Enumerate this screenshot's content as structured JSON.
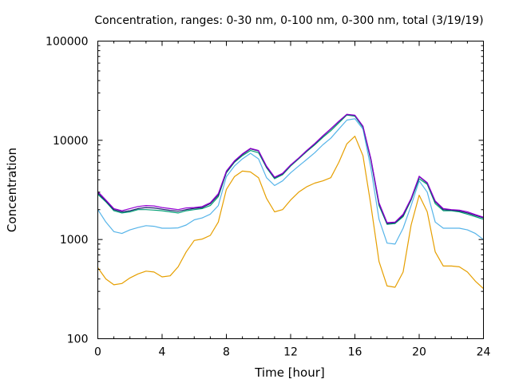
{
  "chart_data": {
    "type": "line",
    "title": "Concentration, ranges: 0-30 nm, 0-100 nm, 0-300 nm, total (3/19/19)",
    "xlabel": "Time [hour]",
    "ylabel": "Concentration",
    "xlim": [
      0,
      24
    ],
    "ylim": [
      100,
      100000
    ],
    "yscale": "log",
    "grid": false,
    "legend": "none",
    "x_ticks": [
      "0",
      "4",
      "8",
      "12",
      "16",
      "20",
      "24"
    ],
    "y_ticks": [
      "100",
      "1000",
      "10000",
      "100000"
    ],
    "x": [
      0,
      0.5,
      1,
      1.5,
      2,
      2.5,
      3,
      3.5,
      4,
      4.5,
      5,
      5.5,
      6,
      6.5,
      7,
      7.5,
      8,
      8.5,
      9,
      9.5,
      10,
      10.5,
      11,
      11.5,
      12,
      12.5,
      13,
      13.5,
      14,
      14.5,
      15,
      15.5,
      16,
      16.5,
      17,
      17.5,
      18,
      18.5,
      19,
      19.5,
      20,
      20.5,
      21,
      21.5,
      22,
      22.5,
      23,
      23.5,
      24
    ],
    "series": [
      {
        "color": "#e69f00",
        "values": [
          520,
          400,
          350,
          360,
          410,
          450,
          480,
          470,
          420,
          430,
          530,
          750,
          980,
          1010,
          1100,
          1500,
          3200,
          4300,
          4900,
          4800,
          4200,
          2600,
          1900,
          2000,
          2500,
          3000,
          3400,
          3700,
          3900,
          4200,
          6000,
          9200,
          11000,
          7000,
          2200,
          600,
          340,
          330,
          470,
          1400,
          2800,
          1900,
          750,
          540,
          540,
          530,
          470,
          380,
          320
        ]
      },
      {
        "color": "#56b4e9",
        "values": [
          2000,
          1500,
          1200,
          1150,
          1250,
          1320,
          1380,
          1360,
          1300,
          1300,
          1310,
          1400,
          1580,
          1650,
          1800,
          2200,
          4300,
          5500,
          6500,
          7400,
          6500,
          4200,
          3500,
          3900,
          4700,
          5500,
          6400,
          7500,
          9000,
          10500,
          13000,
          16000,
          16500,
          13000,
          5200,
          1600,
          920,
          900,
          1300,
          2200,
          3900,
          3000,
          1500,
          1300,
          1300,
          1300,
          1250,
          1150,
          1000
        ]
      },
      {
        "color": "#009e73",
        "values": [
          2850,
          2400,
          1950,
          1850,
          1900,
          2000,
          2000,
          1980,
          1950,
          1900,
          1850,
          1950,
          2000,
          2050,
          2200,
          2700,
          4700,
          6000,
          7000,
          7900,
          7500,
          5300,
          4100,
          4500,
          5500,
          6500,
          7700,
          9000,
          10700,
          12500,
          15000,
          18000,
          17500,
          13500,
          6200,
          2200,
          1420,
          1450,
          1700,
          2500,
          4100,
          3600,
          2300,
          1950,
          1950,
          1900,
          1800,
          1700,
          1600
        ]
      },
      {
        "color": "#1f2070",
        "values": [
          2950,
          2450,
          2000,
          1900,
          1950,
          2050,
          2100,
          2080,
          2020,
          1970,
          1930,
          2000,
          2060,
          2100,
          2300,
          2800,
          4800,
          6100,
          7200,
          8200,
          7800,
          5400,
          4200,
          4600,
          5600,
          6600,
          7800,
          9200,
          11000,
          13000,
          15500,
          18200,
          17800,
          13800,
          6400,
          2300,
          1450,
          1480,
          1750,
          2550,
          4300,
          3700,
          2400,
          2000,
          1980,
          1940,
          1850,
          1750,
          1650
        ]
      },
      {
        "color": "#9400d3",
        "values": [
          3050,
          2500,
          2050,
          1950,
          2050,
          2150,
          2200,
          2180,
          2100,
          2050,
          2000,
          2080,
          2100,
          2150,
          2350,
          2900,
          4900,
          6200,
          7300,
          8300,
          7900,
          5500,
          4250,
          4650,
          5650,
          6650,
          7900,
          9300,
          11100,
          13100,
          15600,
          18300,
          17900,
          13900,
          6500,
          2350,
          1480,
          1500,
          1800,
          2600,
          4350,
          3750,
          2450,
          2050,
          2000,
          1980,
          1900,
          1780,
          1680
        ]
      }
    ]
  }
}
